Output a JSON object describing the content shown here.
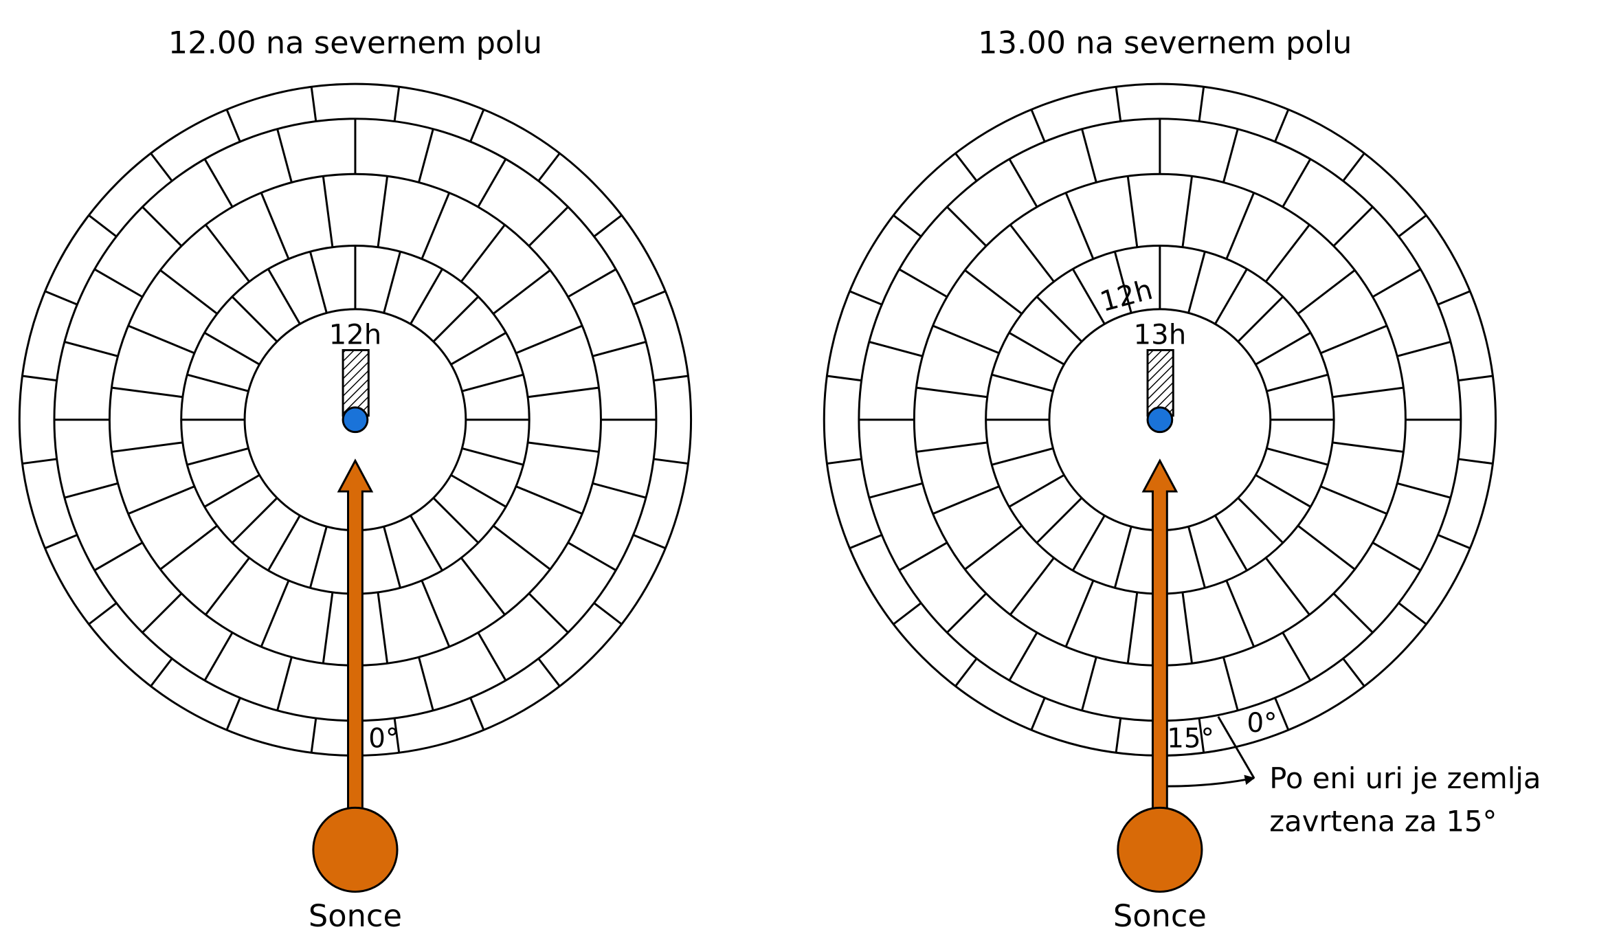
{
  "panels": [
    {
      "title": "12.00 na severnem polu",
      "hour_label": "12h",
      "angle_label": "0°",
      "sun_label": "Sonce"
    },
    {
      "title": "13.00 na severnem polu",
      "hour_label": "13h",
      "previous_hour_label": "12h",
      "angle_label": "15°",
      "zero_label": "0°",
      "sun_label": "Sonce"
    }
  ],
  "note": [
    "Po eni uri je zemlja",
    "zavrtena za 15°"
  ]
}
